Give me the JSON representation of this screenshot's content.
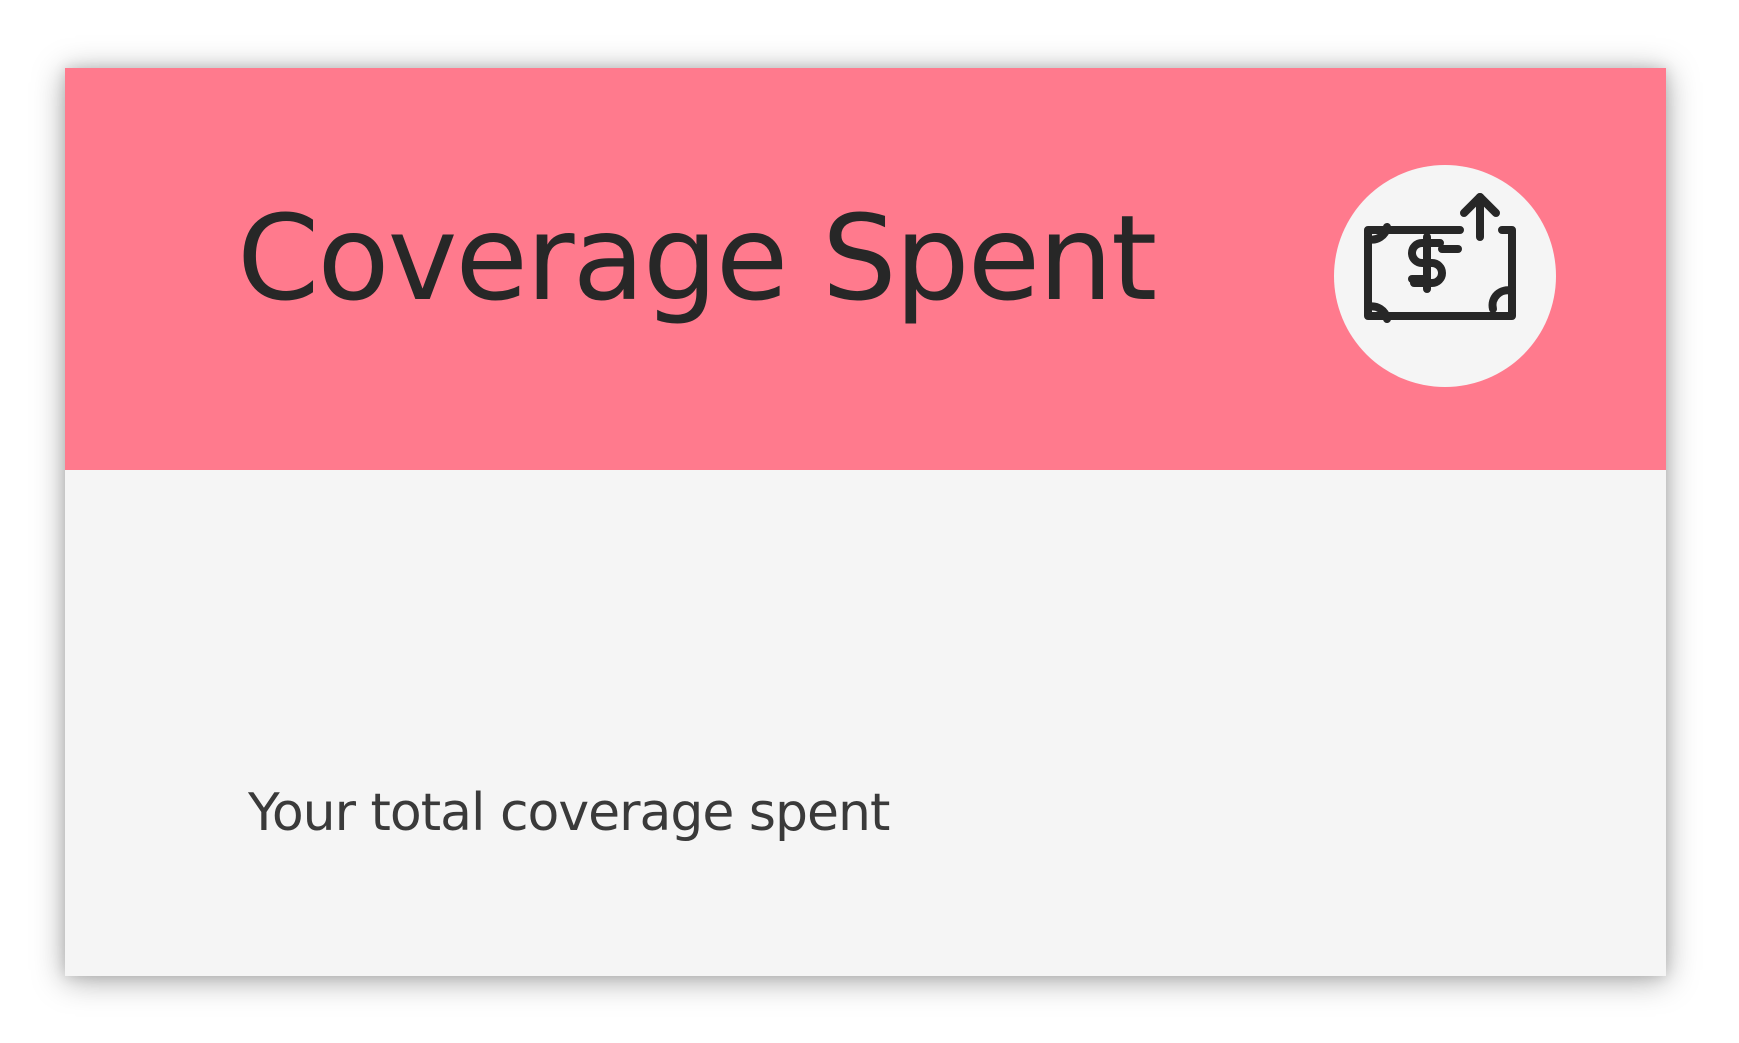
{
  "card": {
    "title": "Coverage Spent",
    "subtitle": "Your total coverage spent",
    "icon": "money-bill-arrow-up-icon",
    "colors": {
      "header": "#ff7a8d",
      "body": "#f5f5f5",
      "text": "#272727",
      "icon": "#272727"
    }
  }
}
